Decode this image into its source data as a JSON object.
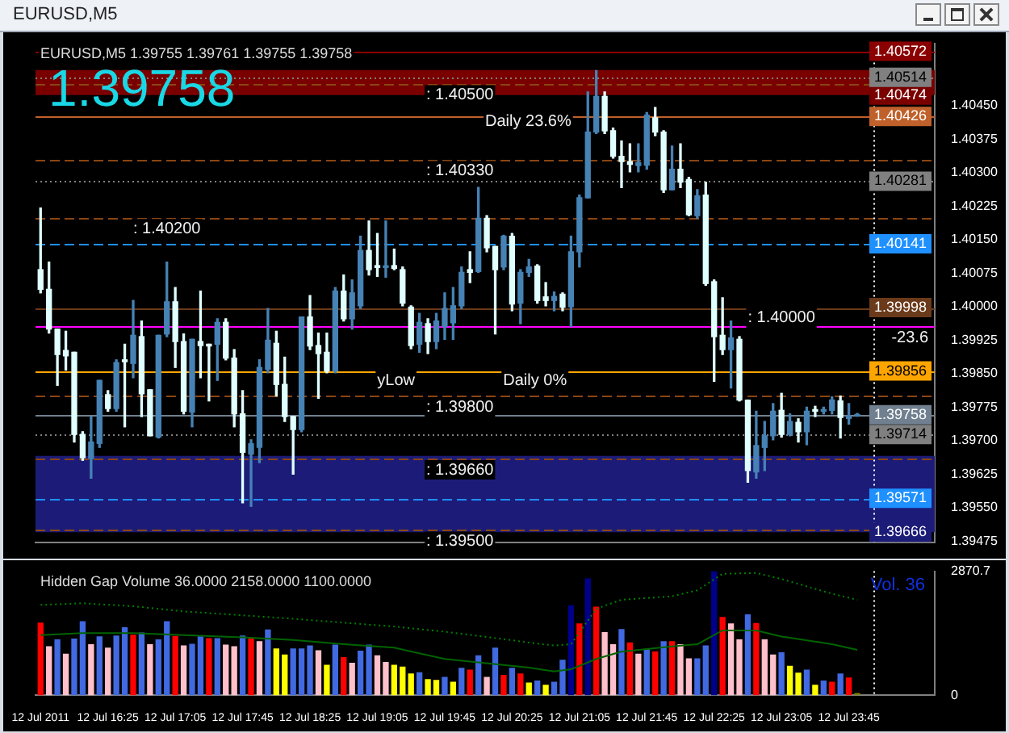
{
  "chart_data": [
    {
      "type": "candlestick",
      "title": "EURUSD,M5 1.39755 1.39761 1.39755 1.39758",
      "x": [
        "2011-07-12T15:45",
        "2011-07-12T15:50",
        "2011-07-12T15:55",
        "2011-07-12T16:00",
        "2011-07-12T16:05",
        "2011-07-12T16:10",
        "2011-07-12T16:15",
        "2011-07-12T16:20",
        "2011-07-12T16:25",
        "2011-07-12T16:30",
        "2011-07-12T16:35",
        "2011-07-12T16:40",
        "2011-07-12T16:45",
        "2011-07-12T16:50",
        "2011-07-12T16:55",
        "2011-07-12T17:00",
        "2011-07-12T17:05",
        "2011-07-12T17:10",
        "2011-07-12T17:15",
        "2011-07-12T17:20",
        "2011-07-12T17:25",
        "2011-07-12T17:30",
        "2011-07-12T17:35",
        "2011-07-12T17:40",
        "2011-07-12T17:45",
        "2011-07-12T17:50",
        "2011-07-12T17:55",
        "2011-07-12T18:00",
        "2011-07-12T18:05",
        "2011-07-12T18:10",
        "2011-07-12T18:15",
        "2011-07-12T18:20",
        "2011-07-12T18:25",
        "2011-07-12T18:30",
        "2011-07-12T18:35",
        "2011-07-12T18:40",
        "2011-07-12T18:45",
        "2011-07-12T18:50",
        "2011-07-12T18:55",
        "2011-07-12T19:00",
        "2011-07-12T19:05",
        "2011-07-12T19:10",
        "2011-07-12T19:15",
        "2011-07-12T19:20",
        "2011-07-12T19:25",
        "2011-07-12T19:30",
        "2011-07-12T19:35",
        "2011-07-12T19:40",
        "2011-07-12T19:45",
        "2011-07-12T19:50",
        "2011-07-12T19:55",
        "2011-07-12T20:00",
        "2011-07-12T20:05",
        "2011-07-12T20:10",
        "2011-07-12T20:15",
        "2011-07-12T20:20",
        "2011-07-12T20:25",
        "2011-07-12T20:30",
        "2011-07-12T20:35",
        "2011-07-12T20:40",
        "2011-07-12T20:45",
        "2011-07-12T20:50",
        "2011-07-12T20:55",
        "2011-07-12T21:00",
        "2011-07-12T21:05",
        "2011-07-12T21:10",
        "2011-07-12T21:15",
        "2011-07-12T21:20",
        "2011-07-12T21:25",
        "2011-07-12T21:30",
        "2011-07-12T21:35",
        "2011-07-12T21:40",
        "2011-07-12T21:45",
        "2011-07-12T21:50",
        "2011-07-12T21:55",
        "2011-07-12T22:00",
        "2011-07-12T22:05",
        "2011-07-12T22:10",
        "2011-07-12T22:15",
        "2011-07-12T22:20",
        "2011-07-12T22:25",
        "2011-07-12T22:30",
        "2011-07-12T22:35",
        "2011-07-12T22:40",
        "2011-07-12T22:45",
        "2011-07-12T22:50",
        "2011-07-12T22:55",
        "2011-07-12T23:00",
        "2011-07-12T23:05",
        "2011-07-12T23:10",
        "2011-07-12T23:15",
        "2011-07-12T23:20",
        "2011-07-12T23:25",
        "2011-07-12T23:30",
        "2011-07-12T23:35",
        "2011-07-12T23:40",
        "2011-07-12T23:45",
        "2011-07-12T23:50"
      ],
      "ohlc": [
        [
          1.40083,
          1.40221,
          1.40031,
          1.40039
        ],
        [
          1.40039,
          1.401,
          1.39941,
          1.3995
        ],
        [
          1.3995,
          1.3995,
          1.39824,
          1.39893
        ],
        [
          1.39902,
          1.39945,
          1.39858,
          1.3989
        ],
        [
          1.39898,
          1.39898,
          1.39697,
          1.39714
        ],
        [
          1.39714,
          1.3972,
          1.39656,
          1.39662
        ],
        [
          1.3966,
          1.39754,
          1.39616,
          1.39697
        ],
        [
          1.39694,
          1.39835,
          1.39685,
          1.39835
        ],
        [
          1.39803,
          1.39812,
          1.39766,
          1.39772
        ],
        [
          1.39772,
          1.39881,
          1.39766,
          1.39875
        ],
        [
          1.39881,
          1.39916,
          1.39731,
          1.39877
        ],
        [
          1.39873,
          1.40014,
          1.39841,
          1.39936
        ],
        [
          1.39933,
          1.39968,
          1.39754,
          1.39805
        ],
        [
          1.39814,
          1.39814,
          1.39711,
          1.39711
        ],
        [
          1.39708,
          1.39936,
          1.39706,
          1.39936
        ],
        [
          1.39939,
          1.401,
          1.39933,
          1.40011
        ],
        [
          1.40011,
          1.40043,
          1.39864,
          1.39922
        ],
        [
          1.39922,
          1.39939,
          1.3976,
          1.39766
        ],
        [
          1.39764,
          1.39927,
          1.39731,
          1.39927
        ],
        [
          1.39922,
          1.40035,
          1.39841,
          1.39913
        ],
        [
          1.39916,
          1.39916,
          1.39789,
          1.39912
        ],
        [
          1.39916,
          1.39973,
          1.39835,
          1.39965
        ],
        [
          1.39965,
          1.39973,
          1.39881,
          1.39885
        ],
        [
          1.39885,
          1.39904,
          1.39731,
          1.3976
        ],
        [
          1.3976,
          1.39812,
          1.39561,
          1.39674
        ],
        [
          1.3967,
          1.39702,
          1.39553,
          1.39693
        ],
        [
          1.39685,
          1.39881,
          1.39651,
          1.39864
        ],
        [
          1.3986,
          1.39996,
          1.39852,
          1.39925
        ],
        [
          1.39918,
          1.39945,
          1.398,
          1.39826
        ],
        [
          1.39826,
          1.39887,
          1.39743,
          1.39754
        ],
        [
          1.39754,
          1.39754,
          1.39625,
          1.39725
        ],
        [
          1.39725,
          1.39977,
          1.3972,
          1.39977
        ],
        [
          1.39977,
          1.40025,
          1.39904,
          1.39912
        ],
        [
          1.39913,
          1.39941,
          1.39795,
          1.39895
        ],
        [
          1.39898,
          1.39941,
          1.39852,
          1.39856
        ],
        [
          1.39856,
          1.40043,
          1.39852,
          1.40035
        ],
        [
          1.40035,
          1.40071,
          1.39968,
          1.39973
        ],
        [
          1.39973,
          1.4006,
          1.3995,
          1.40031
        ],
        [
          1.40002,
          1.40158,
          1.39996,
          1.40126
        ],
        [
          1.40126,
          1.40192,
          1.40071,
          1.40083
        ],
        [
          1.40092,
          1.40164,
          1.40068,
          1.40088
        ],
        [
          1.40088,
          1.40192,
          1.40066,
          1.40091
        ],
        [
          1.40092,
          1.40129,
          1.40083,
          1.40086
        ],
        [
          1.40083,
          1.40089,
          1.40002,
          1.40008
        ],
        [
          1.39999,
          1.40002,
          1.39906,
          1.39913
        ],
        [
          1.39916,
          1.39985,
          1.39898,
          1.39965
        ],
        [
          1.39962,
          1.39973,
          1.39895,
          1.39922
        ],
        [
          1.39922,
          1.39985,
          1.39906,
          1.39968
        ],
        [
          1.39956,
          1.40031,
          1.39927,
          1.39996
        ],
        [
          1.39964,
          1.40043,
          1.39927,
          1.40002
        ],
        [
          1.40002,
          1.40089,
          1.39996,
          1.40077
        ],
        [
          1.40083,
          1.40123,
          1.40054,
          1.40077
        ],
        [
          1.40079,
          1.40267,
          1.40077,
          1.40198
        ],
        [
          1.40198,
          1.40204,
          1.40123,
          1.40132
        ],
        [
          1.40135,
          1.40135,
          1.39939,
          1.40083
        ],
        [
          1.40089,
          1.4016,
          1.40083,
          1.40158
        ],
        [
          1.40158,
          1.40164,
          1.39991,
          1.40006
        ],
        [
          1.40008,
          1.40083,
          1.39962,
          1.40077
        ],
        [
          1.40077,
          1.40106,
          1.40068,
          1.40089
        ],
        [
          1.40091,
          1.40094,
          1.40008,
          1.40014
        ],
        [
          1.40022,
          1.40054,
          1.40002,
          1.40014
        ],
        [
          1.40014,
          1.40033,
          1.39991,
          1.40023
        ],
        [
          1.40028,
          1.40031,
          1.39991,
          1.39999
        ],
        [
          1.4,
          1.40158,
          1.39956,
          1.40123
        ],
        [
          1.40123,
          1.4025,
          1.40089,
          1.40244
        ],
        [
          1.40244,
          1.40481,
          1.40244,
          1.40391
        ],
        [
          1.40391,
          1.40529,
          1.40388,
          1.40471
        ],
        [
          1.40471,
          1.40481,
          1.40388,
          1.40394
        ],
        [
          1.40394,
          1.404,
          1.40333,
          1.40337
        ],
        [
          1.40337,
          1.40371,
          1.40267,
          1.40325
        ],
        [
          1.40325,
          1.40365,
          1.40302,
          1.40319
        ],
        [
          1.40316,
          1.40365,
          1.40302,
          1.40323
        ],
        [
          1.40317,
          1.40435,
          1.40308,
          1.40429
        ],
        [
          1.40423,
          1.40446,
          1.40383,
          1.40391
        ],
        [
          1.40391,
          1.40394,
          1.40256,
          1.40262
        ],
        [
          1.40262,
          1.4036,
          1.40262,
          1.40308
        ],
        [
          1.40308,
          1.40365,
          1.40267,
          1.40279
        ],
        [
          1.40285,
          1.4029,
          1.40204,
          1.40206
        ],
        [
          1.40204,
          1.40262,
          1.40198,
          1.40248
        ],
        [
          1.4025,
          1.40279,
          1.40048,
          1.40052
        ],
        [
          1.40056,
          1.4006,
          1.39833,
          1.39933
        ],
        [
          1.39936,
          1.4002,
          1.39893,
          1.39904
        ],
        [
          1.39904,
          1.39968,
          1.39818,
          1.3993
        ],
        [
          1.39927,
          1.39933,
          1.39789,
          1.39791
        ],
        [
          1.39791,
          1.39791,
          1.39607,
          1.39633
        ],
        [
          1.3963,
          1.39766,
          1.39616,
          1.39689
        ],
        [
          1.39685,
          1.39743,
          1.39633,
          1.39711
        ],
        [
          1.39711,
          1.39783,
          1.39702,
          1.39766
        ],
        [
          1.39768,
          1.39806,
          1.39708,
          1.39714
        ],
        [
          1.39714,
          1.3976,
          1.39711,
          1.39743
        ],
        [
          1.39741,
          1.39749,
          1.39697,
          1.3972
        ],
        [
          1.3972,
          1.39775,
          1.39691,
          1.39766
        ],
        [
          1.39768,
          1.39777,
          1.39754,
          1.39766
        ],
        [
          1.39766,
          1.39775,
          1.3976,
          1.39768
        ],
        [
          1.39768,
          1.39798,
          1.3976,
          1.39791
        ],
        [
          1.39789,
          1.398,
          1.39706,
          1.39752
        ],
        [
          1.3975,
          1.39783,
          1.39737,
          1.39755
        ],
        [
          1.39755,
          1.39761,
          1.39755,
          1.39758
        ]
      ],
      "xlim": [
        "2011-07-12T15:42",
        "2011-07-13T00:36"
      ],
      "ylim": [
        1.39472,
        1.4059
      ],
      "yticks": [
        1.39475,
        {
          "value": 1.3955,
          "label": "1.39550"
        },
        1.39625,
        {
          "value": 1.397,
          "label": "1.39700"
        },
        1.39775,
        {
          "value": 1.3985,
          "label": "1.39850"
        },
        1.39925,
        {
          "value": 1.4,
          "label": "1.40000"
        },
        1.40075,
        {
          "value": 1.4015,
          "label": "1.40150"
        },
        1.40225,
        {
          "value": 1.403,
          "label": "1.40300"
        },
        1.40375,
        {
          "value": 1.4045,
          "label": "1.40450"
        }
      ],
      "tick_labels": "y",
      "bands": [
        {
          "axis": "y",
          "from": 1.40474,
          "to": 1.4053,
          "label": "1.40474",
          "color": "#7a0000"
        },
        {
          "axis": "y",
          "from": 1.39495,
          "to": 1.39666,
          "label": "1.39666",
          "color": "#1c1c78"
        }
      ],
      "ref_lines": [
        {
          "axis": "y",
          "value": 1.40572,
          "label": "1.40572",
          "color": "#8b0000"
        },
        {
          "axis": "y",
          "value": 1.40514,
          "label": "1.40514",
          "color": "#808080",
          "line_style": "dotted"
        },
        {
          "axis": "y",
          "value": 1.405,
          "color": "#8b4513",
          "line_style": "dashed"
        },
        {
          "axis": "y",
          "value": 1.40426,
          "label": "1.40426",
          "color": "#c0602a"
        },
        {
          "axis": "y",
          "value": 1.4033,
          "color": "#8b4513",
          "line_style": "dashed"
        },
        {
          "axis": "y",
          "value": 1.40281,
          "label": "1.40281",
          "color": "#808080",
          "line_style": "dotted"
        },
        {
          "axis": "y",
          "value": 1.402,
          "color": "#8b4513",
          "line_style": "dashed"
        },
        {
          "axis": "y",
          "value": 1.40141,
          "label": "1.40141",
          "color": "#1e90ff",
          "line_style": "dashed"
        },
        {
          "axis": "y",
          "value": 1.39998,
          "label": "1.39998",
          "color": "#6b3a1a"
        },
        {
          "axis": "y",
          "value": 1.39955,
          "color": "#ff00ff"
        },
        {
          "axis": "y",
          "value": 1.39856,
          "label": "1.39856",
          "color": "#ffa500"
        },
        {
          "axis": "y",
          "value": 1.398,
          "color": "#8b4513",
          "line_style": "dashed"
        },
        {
          "axis": "y",
          "value": 1.39758,
          "label": "1.39758",
          "color": "#708090"
        },
        {
          "axis": "y",
          "value": 1.39714,
          "label": "1.39714",
          "color": "#808080",
          "line_style": "dotted"
        },
        {
          "axis": "y",
          "value": 1.3966,
          "color": "#8b4513",
          "line_style": "dashed"
        },
        {
          "axis": "y",
          "value": 1.39571,
          "label": "1.39571",
          "color": "#1e90ff",
          "line_style": "dashed"
        },
        {
          "axis": "y",
          "value": 1.395,
          "color": "#8b4513",
          "line_style": "dashed"
        },
        {
          "axis": "x",
          "value": "2011-07-13T00:00",
          "color": "#ffffff",
          "line_style": "dotted"
        }
      ],
      "annotations": [
        "EURUSD,M5",
        "1.39758",
        "yLow",
        "Daily 0%",
        "Daily 23.6%",
        {
          "text": "-23.6",
          "y": 1.39955
        },
        {
          "text": ": 1.40500",
          "x": "2011-07-12T19:34",
          "y": 1.405
        },
        {
          "text": ": 1.40330",
          "x": "2011-07-12T19:34",
          "y": 1.4033
        },
        {
          "text": ": 1.40200",
          "x": "2011-07-12T16:40",
          "y": 1.402
        },
        {
          "text": ": 1.40000",
          "x": "2011-07-12T22:45",
          "y": 1.4
        },
        {
          "text": ": 1.39800",
          "x": "2011-07-12T19:34",
          "y": 1.398
        },
        {
          "text": ": 1.39660",
          "x": "2011-07-12T19:34",
          "y": 1.3966
        },
        {
          "text": ": 1.39500",
          "x": "2011-07-12T19:34",
          "y": 1.395
        }
      ]
    },
    {
      "type": "bar",
      "title": "Hidden Gap Volume 36.0000 2158.0000 1100.0000",
      "x": [
        "2011-07-12T15:45",
        "2011-07-12T15:50",
        "2011-07-12T15:55",
        "2011-07-12T16:00",
        "2011-07-12T16:05",
        "2011-07-12T16:10",
        "2011-07-12T16:15",
        "2011-07-12T16:20",
        "2011-07-12T16:25",
        "2011-07-12T16:30",
        "2011-07-12T16:35",
        "2011-07-12T16:40",
        "2011-07-12T16:45",
        "2011-07-12T16:50",
        "2011-07-12T16:55",
        "2011-07-12T17:00",
        "2011-07-12T17:05",
        "2011-07-12T17:10",
        "2011-07-12T17:15",
        "2011-07-12T17:20",
        "2011-07-12T17:25",
        "2011-07-12T17:30",
        "2011-07-12T17:35",
        "2011-07-12T17:40",
        "2011-07-12T17:45",
        "2011-07-12T17:50",
        "2011-07-12T17:55",
        "2011-07-12T18:00",
        "2011-07-12T18:05",
        "2011-07-12T18:10",
        "2011-07-12T18:15",
        "2011-07-12T18:20",
        "2011-07-12T18:25",
        "2011-07-12T18:30",
        "2011-07-12T18:35",
        "2011-07-12T18:40",
        "2011-07-12T18:45",
        "2011-07-12T18:50",
        "2011-07-12T18:55",
        "2011-07-12T19:00",
        "2011-07-12T19:05",
        "2011-07-12T19:10",
        "2011-07-12T19:15",
        "2011-07-12T19:20",
        "2011-07-12T19:25",
        "2011-07-12T19:30",
        "2011-07-12T19:35",
        "2011-07-12T19:40",
        "2011-07-12T19:45",
        "2011-07-12T19:50",
        "2011-07-12T19:55",
        "2011-07-12T20:00",
        "2011-07-12T20:05",
        "2011-07-12T20:10",
        "2011-07-12T20:15",
        "2011-07-12T20:20",
        "2011-07-12T20:25",
        "2011-07-12T20:30",
        "2011-07-12T20:35",
        "2011-07-12T20:40",
        "2011-07-12T20:45",
        "2011-07-12T20:50",
        "2011-07-12T20:55",
        "2011-07-12T21:00",
        "2011-07-12T21:05",
        "2011-07-12T21:10",
        "2011-07-12T21:15",
        "2011-07-12T21:20",
        "2011-07-12T21:25",
        "2011-07-12T21:30",
        "2011-07-12T21:35",
        "2011-07-12T21:40",
        "2011-07-12T21:45",
        "2011-07-12T21:50",
        "2011-07-12T21:55",
        "2011-07-12T22:00",
        "2011-07-12T22:05",
        "2011-07-12T22:10",
        "2011-07-12T22:15",
        "2011-07-12T22:20",
        "2011-07-12T22:25",
        "2011-07-12T22:30",
        "2011-07-12T22:35",
        "2011-07-12T22:40",
        "2011-07-12T22:45",
        "2011-07-12T22:50",
        "2011-07-12T22:55",
        "2011-07-12T23:00",
        "2011-07-12T23:05",
        "2011-07-12T23:10",
        "2011-07-12T23:15",
        "2011-07-12T23:20",
        "2011-07-12T23:25",
        "2011-07-12T23:30",
        "2011-07-12T23:35",
        "2011-07-12T23:40",
        "2011-07-12T23:45",
        "2011-07-12T23:50"
      ],
      "series": [
        {
          "values": [
            1670,
            1120,
            1280,
            950,
            1300,
            1700,
            1170,
            1350,
            1090,
            1370,
            1560,
            1390,
            1440,
            1170,
            1280,
            1700,
            1360,
            1140,
            1180,
            1350,
            1310,
            1310,
            1160,
            1120,
            1370,
            1310,
            1240,
            1510,
            1070,
            930,
            1070,
            1070,
            1140,
            1030,
            690,
            1160,
            870,
            740,
            1020,
            1160,
            910,
            760,
            690,
            650,
            490,
            520,
            360,
            340,
            410,
            300,
            620,
            580,
            910,
            410,
            1090,
            460,
            620,
            490,
            280,
            330,
            230,
            300,
            810,
            2070,
            1650,
            2690,
            2040,
            1450,
            1170,
            1520,
            1210,
            950,
            1050,
            1000,
            1240,
            1240,
            1170,
            840,
            840,
            1140,
            2860,
            1800,
            1650,
            1280,
            1860,
            1660,
            1280,
            930,
            980,
            670,
            510,
            580,
            230,
            330,
            300,
            490,
            400,
            36
          ],
          "colors": [
            "#ff0000",
            "#ffc0cb",
            "#4169e1",
            "#ffc0cb",
            "#4169e1",
            "#4169e1",
            "#ffc0cb",
            "#4169e1",
            "#ffc0cb",
            "#4169e1",
            "#4169e1",
            "#ff0000",
            "#4169e1",
            "#ffc0cb",
            "#4169e1",
            "#4169e1",
            "#ff0000",
            "#ffc0cb",
            "#4169e1",
            "#4169e1",
            "#ff0000",
            "#4169e1",
            "#ffc0cb",
            "#ffc0cb",
            "#4169e1",
            "#ff0000",
            "#ffc0cb",
            "#4169e1",
            "#ffff00",
            "#ffff00",
            "#4169e1",
            "#4169e1",
            "#4169e1",
            "#ffc0cb",
            "#ffff00",
            "#4169e1",
            "#ff0000",
            "#ffc0cb",
            "#4169e1",
            "#4169e1",
            "#ffc0cb",
            "#ffc0cb",
            "#ffff00",
            "#ffff00",
            "#ffff00",
            "#4169e1",
            "#ffff00",
            "#ffff00",
            "#4169e1",
            "#ffff00",
            "#4169e1",
            "#ff0000",
            "#4169e1",
            "#ffc0cb",
            "#4169e1",
            "#ff0000",
            "#4169e1",
            "#ff0000",
            "#ffff00",
            "#4169e1",
            "#ffff00",
            "#4169e1",
            "#4169e1",
            "#00008b",
            "#ff0000",
            "#00008b",
            "#ff0000",
            "#ffc0cb",
            "#ffc0cb",
            "#4169e1",
            "#ff0000",
            "#ffc0cb",
            "#4169e1",
            "#ff0000",
            "#4169e1",
            "#ff0000",
            "#ffc0cb",
            "#ffc0cb",
            "#4169e1",
            "#4169e1",
            "#00008b",
            "#ff0000",
            "#ffc0cb",
            "#ffc0cb",
            "#4169e1",
            "#ff0000",
            "#ffc0cb",
            "#ffc0cb",
            "#4169e1",
            "#ffff00",
            "#ffff00",
            "#4169e1",
            "#ffff00",
            "#4169e1",
            "#ff0000",
            "#4169e1",
            "#ff0000",
            "#808000"
          ]
        },
        {
          "type": "line",
          "color": "#006400",
          "x": [
            "2011-07-12T15:45",
            "2011-07-12T16:10",
            "2011-07-12T16:40",
            "2011-07-12T17:10",
            "2011-07-12T17:45",
            "2011-07-12T18:15",
            "2011-07-12T18:45",
            "2011-07-12T19:15",
            "2011-07-12T19:45",
            "2011-07-12T20:20",
            "2011-07-12T20:35",
            "2011-07-12T20:50",
            "2011-07-12T21:00",
            "2011-07-12T21:15",
            "2011-07-12T21:30",
            "2011-07-12T22:00",
            "2011-07-12T22:15",
            "2011-07-12T22:30",
            "2011-07-12T22:50",
            "2011-07-12T23:05",
            "2011-07-12T23:35",
            "2011-07-12T23:50"
          ],
          "values": [
            1390,
            1440,
            1440,
            1390,
            1340,
            1280,
            1180,
            1100,
            840,
            700,
            640,
            550,
            600,
            840,
            1010,
            1130,
            1180,
            1500,
            1500,
            1360,
            1180,
            1050
          ]
        },
        {
          "type": "line",
          "color": "#008000",
          "line_style": "dotted",
          "x": [
            "2011-07-12T15:45",
            "2011-07-12T16:10",
            "2011-07-12T16:40",
            "2011-07-12T17:10",
            "2011-07-12T17:45",
            "2011-07-12T18:15",
            "2011-07-12T18:45",
            "2011-07-12T19:15",
            "2011-07-12T19:45",
            "2011-07-12T20:20",
            "2011-07-12T20:35",
            "2011-07-12T20:50",
            "2011-07-12T21:00",
            "2011-07-12T21:15",
            "2011-07-12T21:30",
            "2011-07-12T22:00",
            "2011-07-12T22:15",
            "2011-07-12T22:30",
            "2011-07-12T22:50",
            "2011-07-12T23:05",
            "2011-07-12T23:35",
            "2011-07-12T23:50"
          ],
          "values": [
            2090,
            2130,
            2060,
            1940,
            1850,
            1770,
            1680,
            1590,
            1470,
            1300,
            1220,
            1150,
            1180,
            2000,
            2210,
            2290,
            2430,
            2810,
            2830,
            2690,
            2350,
            2210
          ]
        }
      ],
      "xlim": [
        "2011-07-12T15:42",
        "2011-07-13T00:36"
      ],
      "xticks": [
        {
          "value": "2011-07-12T15:45",
          "label": "12 Jul 2011"
        },
        {
          "value": "2011-07-12T16:25",
          "label": "12 Jul 16:25"
        },
        {
          "value": "2011-07-12T17:05",
          "label": "12 Jul 17:05"
        },
        {
          "value": "2011-07-12T17:45",
          "label": "12 Jul 17:45"
        },
        {
          "value": "2011-07-12T18:25",
          "label": "12 Jul 18:25"
        },
        {
          "value": "2011-07-12T19:05",
          "label": "12 Jul 19:05"
        },
        {
          "value": "2011-07-12T19:45",
          "label": "12 Jul 19:45"
        },
        {
          "value": "2011-07-12T20:25",
          "label": "12 Jul 20:25"
        },
        {
          "value": "2011-07-12T21:05",
          "label": "12 Jul 21:05"
        },
        {
          "value": "2011-07-12T21:45",
          "label": "12 Jul 21:45"
        },
        {
          "value": "2011-07-12T22:25",
          "label": "12 Jul 22:25"
        },
        {
          "value": "2011-07-12T23:05",
          "label": "12 Jul 23:05"
        },
        {
          "value": "2011-07-12T23:45",
          "label": "12 Jul 23:45"
        }
      ],
      "ylim": [
        0,
        2870.7
      ],
      "yticks": [
        0,
        2870.7
      ],
      "ref_lines": [
        {
          "axis": "x",
          "value": "2011-07-13T00:00",
          "color": "#ffffff",
          "line_style": "dotted"
        }
      ],
      "annotations": [
        "Vol. 36"
      ]
    }
  ]
}
